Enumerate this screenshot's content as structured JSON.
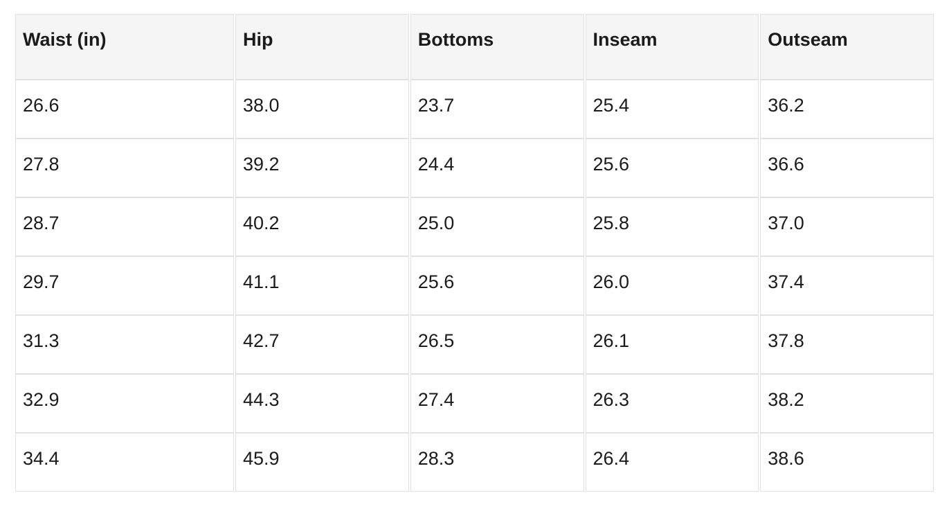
{
  "table": {
    "columns": [
      "Waist (in)",
      "Hip",
      "Bottoms",
      "Inseam",
      "Outseam"
    ],
    "rows": [
      [
        "26.6",
        "38.0",
        "23.7",
        "25.4",
        "36.2"
      ],
      [
        "27.8",
        "39.2",
        "24.4",
        "25.6",
        "36.6"
      ],
      [
        "28.7",
        "40.2",
        "25.0",
        "25.8",
        "37.0"
      ],
      [
        "29.7",
        "41.1",
        "25.6",
        "26.0",
        "37.4"
      ],
      [
        "31.3",
        "42.7",
        "26.5",
        "26.1",
        "37.8"
      ],
      [
        "32.9",
        "44.3",
        "27.4",
        "26.3",
        "38.2"
      ],
      [
        "34.4",
        "45.9",
        "28.3",
        "26.4",
        "38.6"
      ]
    ]
  },
  "chart_data": {
    "type": "table",
    "title": "",
    "columns": [
      "Waist (in)",
      "Hip",
      "Bottoms",
      "Inseam",
      "Outseam"
    ],
    "rows": [
      [
        26.6,
        38.0,
        23.7,
        25.4,
        36.2
      ],
      [
        27.8,
        39.2,
        24.4,
        25.6,
        36.6
      ],
      [
        28.7,
        40.2,
        25.0,
        25.8,
        37.0
      ],
      [
        29.7,
        41.1,
        25.6,
        26.0,
        37.4
      ],
      [
        31.3,
        42.7,
        26.5,
        26.1,
        37.8
      ],
      [
        32.9,
        44.3,
        27.4,
        26.3,
        38.2
      ],
      [
        34.4,
        45.9,
        28.3,
        26.4,
        38.6
      ]
    ]
  },
  "colors": {
    "header_bg": "#f5f5f5",
    "row_bg": "#ffffff",
    "border": "#e1e1e1",
    "text": "#1b1b1b"
  }
}
